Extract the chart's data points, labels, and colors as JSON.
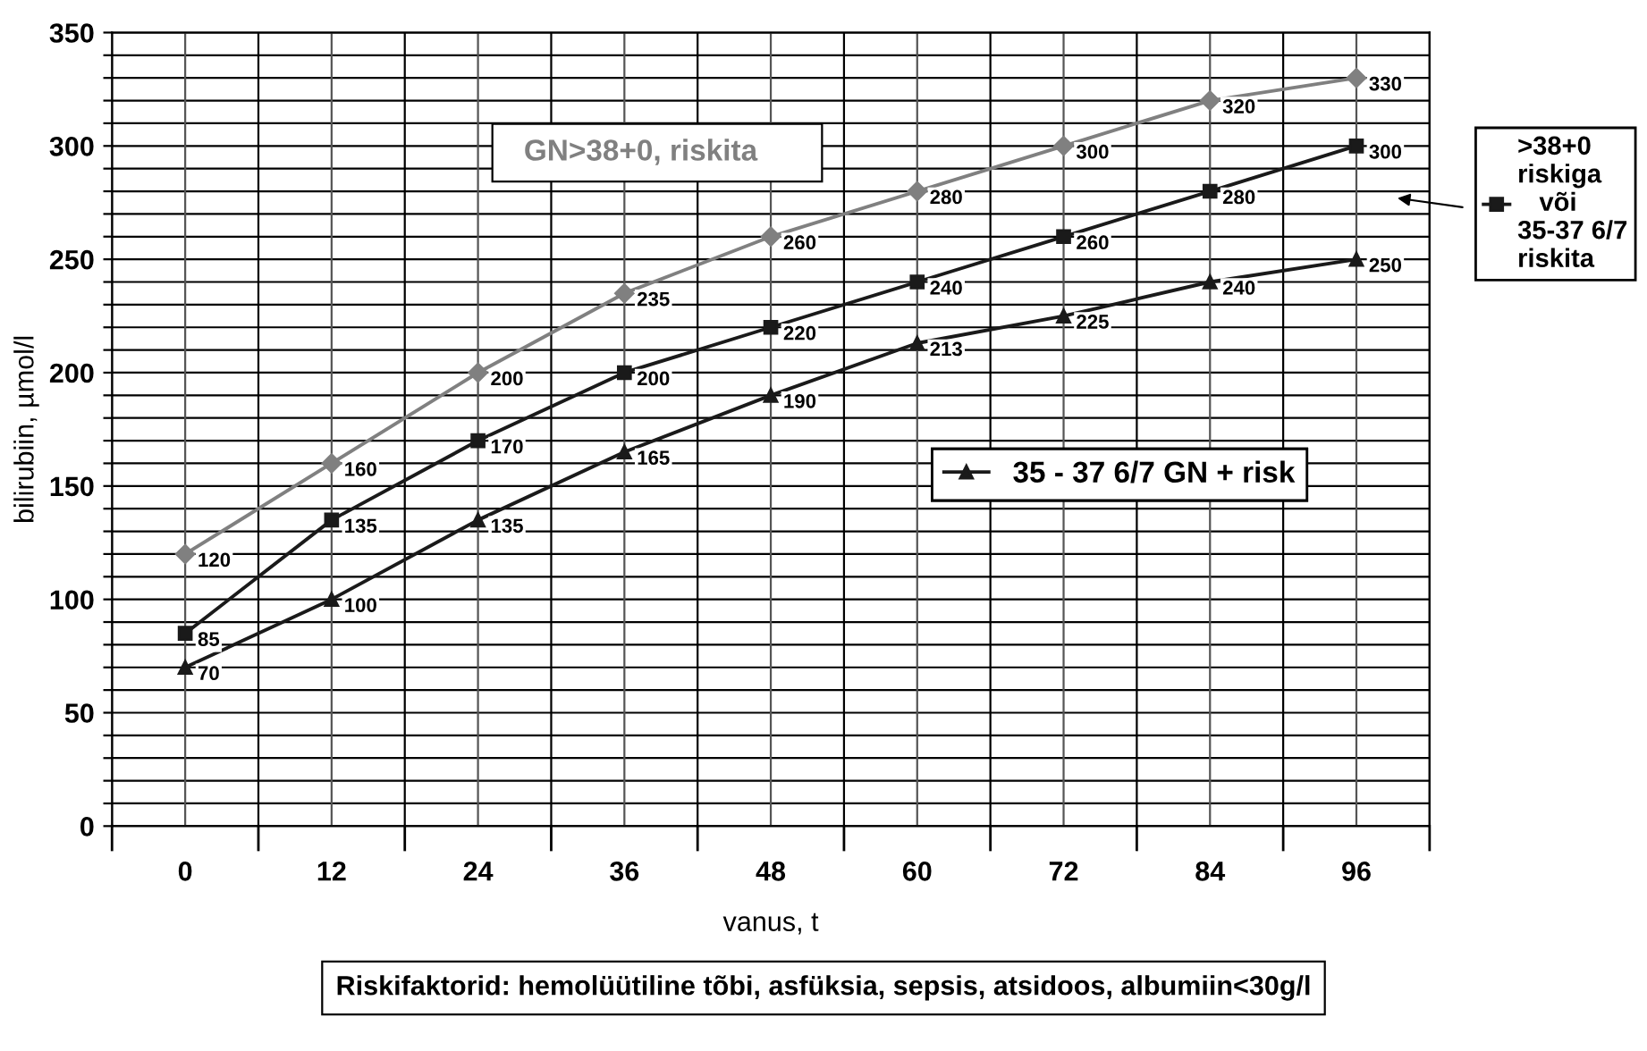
{
  "chart_data": {
    "type": "line",
    "xlabel": "vanus, t",
    "ylabel": "bilirubiin, µmol/l",
    "categories": [
      "0",
      "12",
      "24",
      "36",
      "48",
      "60",
      "72",
      "84",
      "96"
    ],
    "series": [
      {
        "name": "GN>38+0, riskita",
        "color": "#808080",
        "marker": "diamond",
        "values": [
          120,
          160,
          200,
          235,
          260,
          280,
          300,
          320,
          330
        ]
      },
      {
        "name": ">38+0\nriskiga\n   või\n35-37 6/7\nriskita",
        "color": "#1a1a1a",
        "marker": "square",
        "values": [
          85,
          135,
          170,
          200,
          220,
          240,
          260,
          280,
          300
        ]
      },
      {
        "name": "35 - 37 6/7 GN + risk",
        "color": "#1a1a1a",
        "marker": "triangle",
        "values": [
          70,
          100,
          135,
          165,
          190,
          213,
          225,
          240,
          250
        ]
      }
    ],
    "ylim": [
      0,
      350
    ],
    "yticks": [
      0,
      {
        "value": 10,
        "label": null
      },
      {
        "value": 20,
        "label": null
      },
      {
        "value": 30,
        "label": null
      },
      {
        "value": 40,
        "label": null
      },
      50,
      {
        "value": 60,
        "label": null
      },
      {
        "value": 70,
        "label": null
      },
      {
        "value": 80,
        "label": null
      },
      {
        "value": 90,
        "label": null
      },
      100,
      {
        "value": 110,
        "label": null
      },
      {
        "value": 120,
        "label": null
      },
      {
        "value": 130,
        "label": null
      },
      {
        "value": 140,
        "label": null
      },
      150,
      {
        "value": 160,
        "label": null
      },
      {
        "value": 170,
        "label": null
      },
      {
        "value": 180,
        "label": null
      },
      {
        "value": 190,
        "label": null
      },
      200,
      {
        "value": 210,
        "label": null
      },
      {
        "value": 220,
        "label": null
      },
      {
        "value": 230,
        "label": null
      },
      {
        "value": 240,
        "label": null
      },
      250,
      {
        "value": 260,
        "label": null
      },
      {
        "value": 270,
        "label": null
      },
      {
        "value": 280,
        "label": null
      },
      {
        "value": 290,
        "label": null
      },
      300,
      {
        "value": 310,
        "label": null
      },
      {
        "value": 320,
        "label": null
      },
      {
        "value": 330,
        "label": null
      },
      {
        "value": 340,
        "label": null
      },
      350
    ],
    "grid": true,
    "legend": "right",
    "data_labels": true,
    "line_style": "solid",
    "annotations": [
      "Riskifaktorid: hemolüütiline tõbi, asfüksia, sepsis, atsidoos, albumiin<30g/l"
    ]
  }
}
